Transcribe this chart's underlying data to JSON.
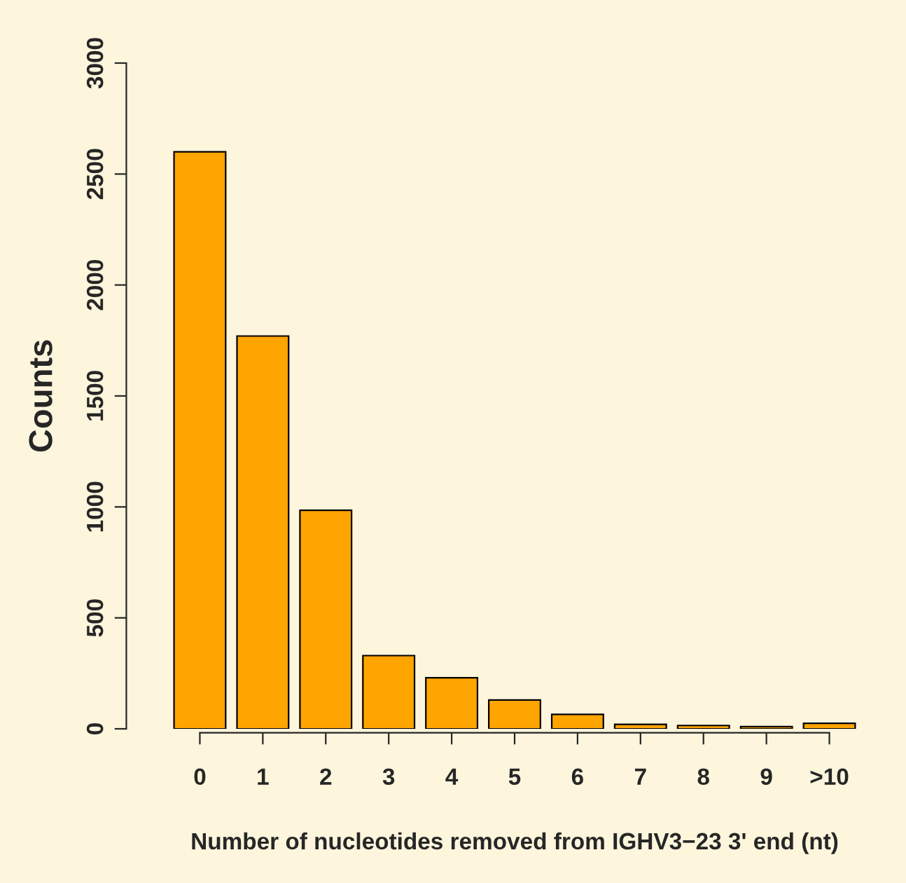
{
  "chart_data": {
    "type": "bar",
    "xlabel": "Number of nucleotides removed from IGHV3−23 3' end (nt)",
    "ylabel": "Counts",
    "categories": [
      "0",
      "1",
      "2",
      "3",
      "4",
      "5",
      "6",
      "7",
      "8",
      "9",
      ">10"
    ],
    "values": [
      2600,
      1770,
      985,
      330,
      230,
      130,
      65,
      20,
      15,
      10,
      25
    ],
    "color": "#ffa500",
    "ylim": [
      0,
      3000
    ],
    "yticks": [
      0,
      500,
      1000,
      1500,
      2000,
      2500,
      3000
    ],
    "grid": false,
    "legend": false
  }
}
